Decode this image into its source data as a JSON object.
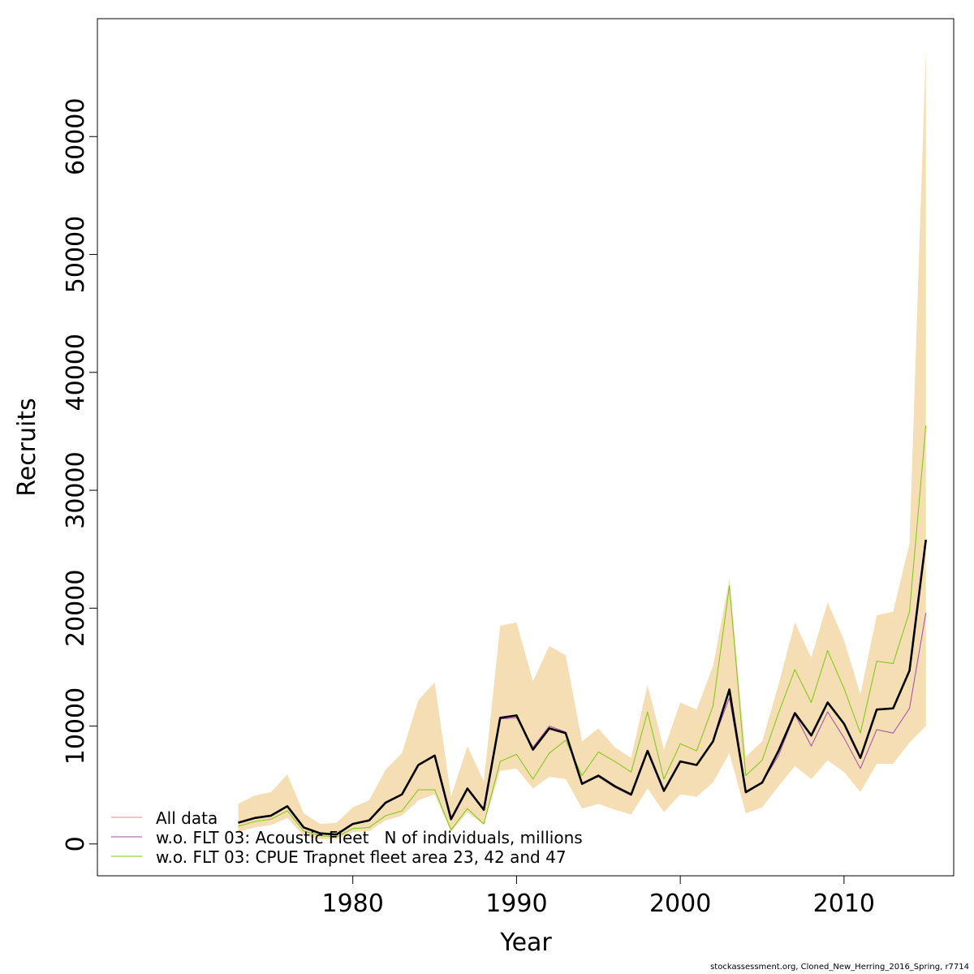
{
  "chart_data": {
    "type": "line",
    "title": "",
    "xlabel": "Year",
    "ylabel": "Recruits",
    "xlim": [
      1964.4,
      2016.7
    ],
    "ylim": [
      -2700,
      70000
    ],
    "x_ticks": [
      1980,
      1990,
      2000,
      2010
    ],
    "y_ticks": [
      0,
      10000,
      20000,
      30000,
      40000,
      50000,
      60000
    ],
    "legend_position": "bottom-left",
    "grid": false,
    "x": [
      1973,
      1974,
      1975,
      1976,
      1977,
      1978,
      1979,
      1980,
      1981,
      1982,
      1983,
      1984,
      1985,
      1986,
      1987,
      1988,
      1989,
      1990,
      1991,
      1992,
      1993,
      1994,
      1995,
      1996,
      1997,
      1998,
      1999,
      2000,
      2001,
      2002,
      2003,
      2004,
      2005,
      2006,
      2007,
      2008,
      2009,
      2010,
      2011,
      2012,
      2013,
      2014,
      2015
    ],
    "band": {
      "color": "#F5DEB3",
      "lower": [
        1000,
        1400,
        1600,
        2200,
        700,
        400,
        400,
        1000,
        1100,
        2000,
        2400,
        3700,
        4200,
        1000,
        2700,
        1600,
        6200,
        6400,
        4700,
        5700,
        5500,
        3000,
        3400,
        2900,
        2500,
        4700,
        2700,
        4200,
        4000,
        5200,
        7700,
        2600,
        3100,
        4900,
        6600,
        5500,
        7100,
        6100,
        4400,
        6800,
        6800,
        8600,
        10000
      ],
      "upper": [
        3400,
        4100,
        4400,
        5900,
        2600,
        1700,
        1800,
        3100,
        3700,
        6300,
        7700,
        12200,
        13700,
        4000,
        8300,
        5300,
        18500,
        18800,
        13800,
        16800,
        16000,
        8700,
        9800,
        8200,
        7300,
        13500,
        8000,
        12000,
        11400,
        15100,
        22500,
        7400,
        8700,
        13500,
        18800,
        15800,
        20500,
        17300,
        12700,
        19400,
        19700,
        25500,
        67400
      ]
    },
    "series": [
      {
        "name": "All data",
        "color": "#F08080",
        "width": 1,
        "values": [
          1800,
          2200,
          2400,
          3200,
          1400,
          900,
          800,
          1700,
          2000,
          3500,
          4200,
          6700,
          7500,
          2100,
          4700,
          2900,
          10700,
          10900,
          8000,
          9800,
          9400,
          5100,
          5800,
          4900,
          4200,
          7900,
          4500,
          7000,
          6700,
          8700,
          13100,
          4400,
          5200,
          7900,
          11100,
          9200,
          12000,
          10200,
          7300,
          11400,
          11500,
          14700,
          25800
        ]
      },
      {
        "name": "w.o. FLT 03: Acoustic Fleet   N of individuals, millions",
        "color": "#A04AB0",
        "width": 1,
        "values": [
          1800,
          2200,
          2400,
          3200,
          1400,
          900,
          800,
          1700,
          2000,
          3500,
          4200,
          6700,
          7500,
          2100,
          4700,
          2900,
          10600,
          10700,
          8200,
          10000,
          9500,
          5100,
          5700,
          4800,
          4100,
          7800,
          4500,
          7000,
          6700,
          8700,
          12400,
          4300,
          5200,
          7500,
          11000,
          8300,
          11200,
          9000,
          6400,
          9700,
          9400,
          11500,
          19600
        ]
      },
      {
        "name": "w.o. FLT 03: CPUE Trapnet fleet area 23, 42 and 47",
        "color": "#7AC70F",
        "width": 1,
        "values": [
          1500,
          1900,
          2100,
          2800,
          1100,
          700,
          600,
          1300,
          1400,
          2400,
          2800,
          4600,
          4600,
          1200,
          3000,
          1700,
          7000,
          7600,
          5500,
          7700,
          8800,
          5800,
          7800,
          7000,
          6100,
          11200,
          5500,
          8500,
          7900,
          11700,
          21900,
          5800,
          7100,
          11100,
          14800,
          12000,
          16400,
          13200,
          9400,
          15500,
          15300,
          19700,
          35500
        ]
      },
      {
        "name": "",
        "color": "#000000",
        "width": 2.6,
        "values": [
          1800,
          2200,
          2400,
          3200,
          1400,
          900,
          800,
          1700,
          2000,
          3500,
          4200,
          6700,
          7500,
          2100,
          4700,
          2900,
          10700,
          10900,
          8000,
          9800,
          9400,
          5100,
          5800,
          4900,
          4200,
          7900,
          4500,
          7000,
          6700,
          8700,
          13100,
          4400,
          5200,
          7900,
          11100,
          9200,
          12000,
          10200,
          7300,
          11400,
          11500,
          14700,
          25800
        ]
      }
    ]
  },
  "footer_text": "stockassessment.org, Cloned_New_Herring_2016_Spring, r7714"
}
